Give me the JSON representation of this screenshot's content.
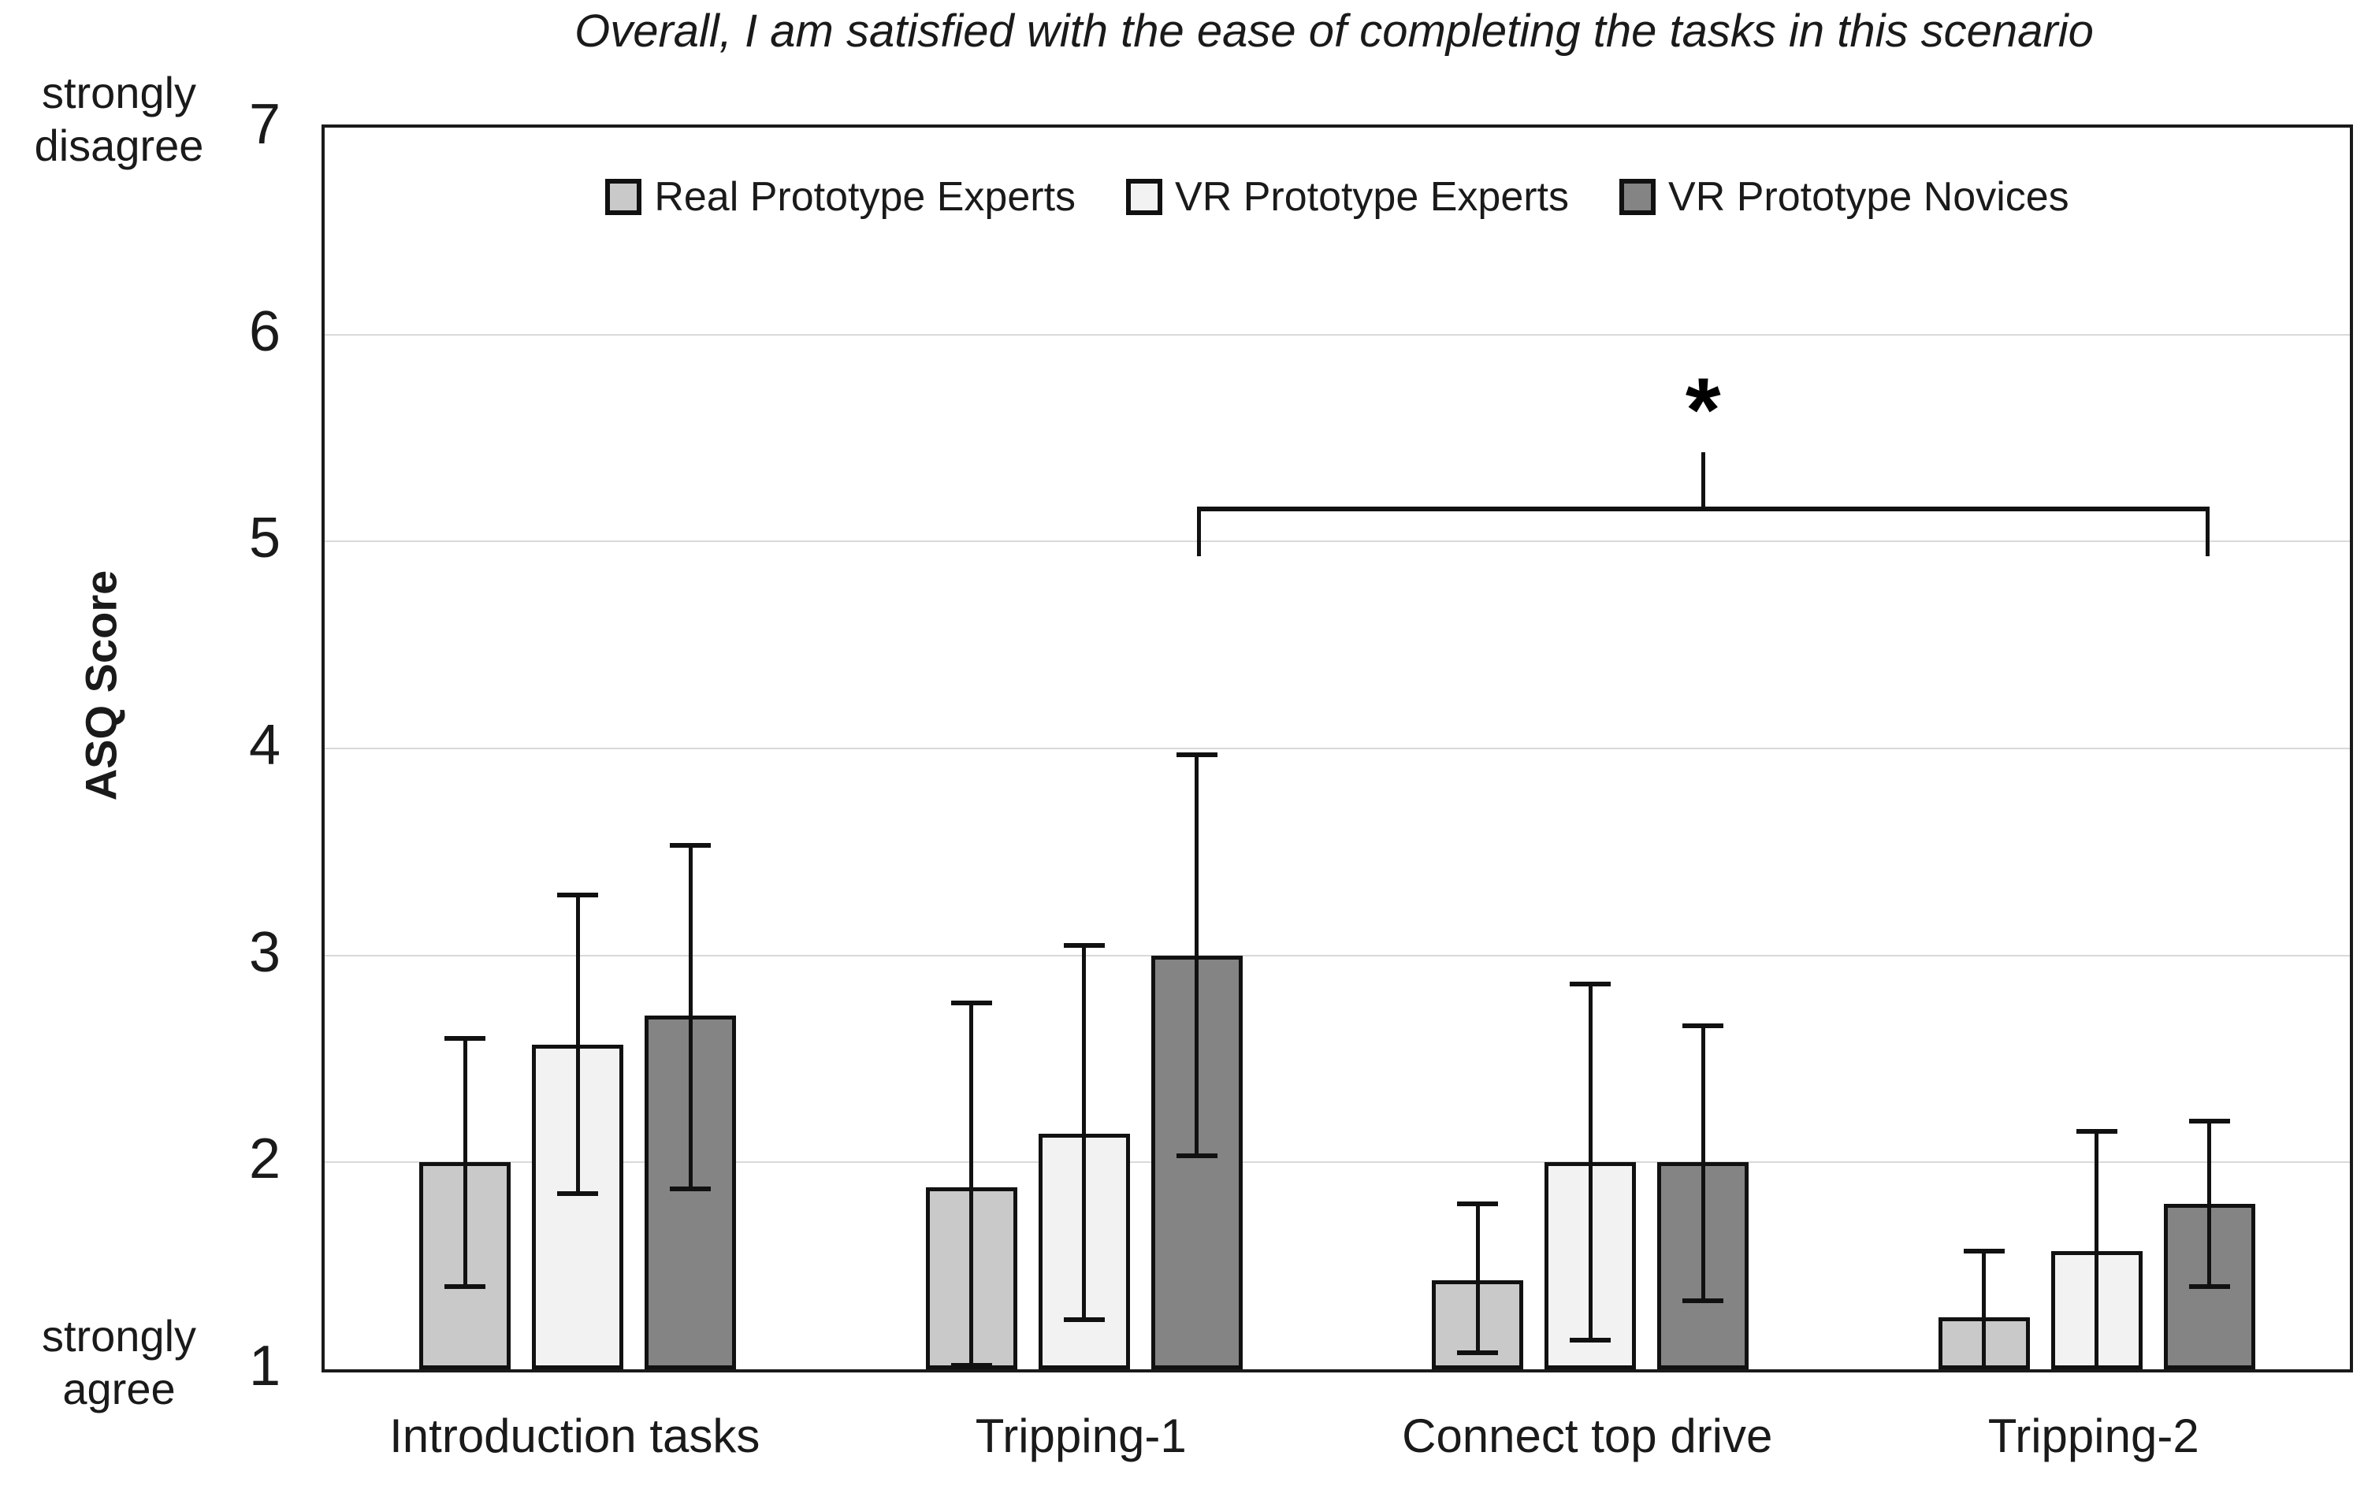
{
  "chart_data": {
    "type": "bar",
    "title": "Overall, I am satisfied with the ease of completing the tasks in this scenario",
    "categories": [
      "Introduction tasks",
      "Tripping-1",
      "Connect top drive",
      "Tripping-2"
    ],
    "series": [
      {
        "name": "Real Prototype Experts",
        "color": "#c9c9c9",
        "values": [
          2.0,
          1.88,
          1.43,
          1.25
        ],
        "err_lo": [
          1.4,
          1.02,
          1.08,
          1.0
        ],
        "err_hi": [
          2.6,
          2.77,
          1.8,
          1.57
        ],
        "lo_caps": [
          true,
          true,
          true,
          false
        ]
      },
      {
        "name": "VR Prototype Experts",
        "color": "#f2f2f2",
        "values": [
          2.57,
          2.14,
          2.0,
          1.57
        ],
        "err_lo": [
          1.85,
          1.24,
          1.14,
          1.0
        ],
        "err_hi": [
          3.29,
          3.05,
          2.86,
          2.15
        ],
        "lo_caps": [
          true,
          true,
          true,
          false
        ]
      },
      {
        "name": "VR Prototype Novices",
        "color": "#848484",
        "values": [
          2.71,
          3.0,
          2.0,
          1.8
        ],
        "err_lo": [
          1.87,
          2.03,
          1.33,
          1.4
        ],
        "err_hi": [
          3.53,
          3.97,
          2.66,
          2.2
        ],
        "lo_caps": [
          true,
          true,
          true,
          true
        ]
      }
    ],
    "y_axis": {
      "label": "ASQ Score",
      "min": 1,
      "max": 7,
      "ticks": [
        "7",
        "6",
        "5",
        "4",
        "3",
        "2",
        "1"
      ],
      "tick_values": [
        7,
        6,
        5,
        4,
        3,
        2,
        1
      ],
      "gridline_values": [
        6,
        5,
        4,
        3,
        2
      ],
      "top_anchor": "strongly disagree",
      "bottom_anchor": "strongly agree"
    },
    "legend_position": "top-center",
    "grid": true,
    "significance": {
      "symbol": "*",
      "from_category": "Tripping-1",
      "to_category": "Tripping-2",
      "series": "VR Prototype Novices",
      "bar_y": 5.17,
      "end_tick_y": 4.93,
      "center_tick_y": 5.43
    },
    "frame_color": "#1a1a1a",
    "gridline_color": "#d9d9d9",
    "background": "#ffffff"
  }
}
